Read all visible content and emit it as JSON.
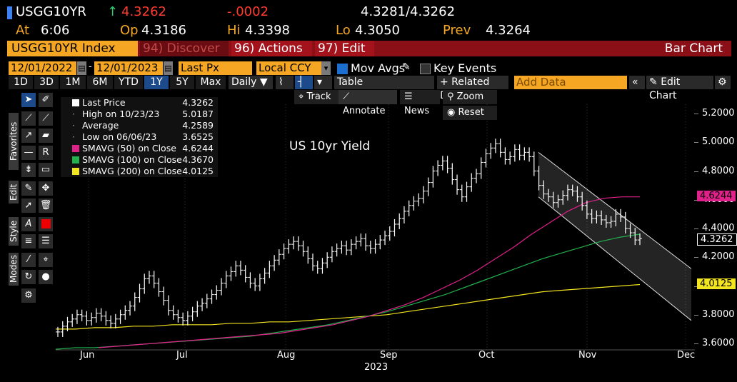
{
  "header": {
    "ticker": "USGG10YR",
    "arrow": "↑",
    "last": "4.3262",
    "change": "-.0002",
    "bid_ask": "4.3281/4.3262",
    "at_label": "At",
    "at_value": "6:06",
    "op_label": "Op",
    "op_value": "4.3186",
    "hi_label": "Hi",
    "hi_value": "4.3398",
    "lo_label": "Lo",
    "lo_value": "4.3050",
    "prev_label": "Prev",
    "prev_value": "4.3264"
  },
  "titlebar": {
    "security": "USGG10YR Index",
    "discover": "94) Discover",
    "actions": "96) Actions",
    "edit": "97) Edit",
    "chart_type": "Bar Chart",
    "dropdown_caret": "▾"
  },
  "controls": {
    "start_date": "12/01/2022",
    "end_date": "12/01/2023",
    "field": "Last Px",
    "currency": "Local CCY",
    "mov_avgs": "Mov Avgs",
    "key_events": "Key Events",
    "periods": [
      "1D",
      "3D",
      "1M",
      "6M",
      "YTD",
      "1Y",
      "5Y",
      "Max"
    ],
    "active_period": "1Y",
    "frequency": "Daily",
    "table": "Table",
    "related_data": "+ Related Dat",
    "add_data_placeholder": "Add Data",
    "edit_chart": "Edit Chart",
    "track": "Track",
    "annotate": "Annotate",
    "news": "News",
    "zoom": "Zoom",
    "reset": "Reset"
  },
  "side_labels": {
    "favorites": "Favorites",
    "edit": "Edit",
    "style": "Style",
    "modes": "Modes"
  },
  "legend": [
    {
      "label": "Last Price",
      "value": "4.3262",
      "color": "#ffffff"
    },
    {
      "label": "High on 10/23/23",
      "value": "5.0187",
      "color": ""
    },
    {
      "label": "Average",
      "value": "4.2589",
      "color": ""
    },
    {
      "label": "Low on 06/06/23",
      "value": "3.6525",
      "color": ""
    },
    {
      "label": "SMAVG (50)  on Close",
      "value": "4.6244",
      "color": "#e0218a"
    },
    {
      "label": "SMAVG (100)  on Close",
      "value": "4.3670",
      "color": "#22b14c"
    },
    {
      "label": "SMAVG (200)  on Close",
      "value": "4.0125",
      "color": "#f2e41f"
    }
  ],
  "chart_data": {
    "type": "bar",
    "title": "US 10yr Yield",
    "y_ticks": [
      "5.2000",
      "5.0000",
      "4.8000",
      "4.6000",
      "4.4000",
      "4.2000",
      "4.0000",
      "3.8000",
      "3.6000"
    ],
    "ylim": [
      3.6,
      5.2
    ],
    "x_ticks": [
      "Jun",
      "Jul",
      "Aug",
      "Sep",
      "Oct",
      "Nov",
      "Dec"
    ],
    "x_year": "2023",
    "right_tags": [
      {
        "value": "4.6244",
        "color": "#e0218a"
      },
      {
        "value": "4.3262",
        "color": "#ffffff"
      },
      {
        "value": "4.0125",
        "color": "#f2e41f"
      }
    ],
    "close": [
      3.68,
      3.72,
      3.75,
      3.77,
      3.8,
      3.79,
      3.76,
      3.78,
      3.81,
      3.79,
      3.76,
      3.74,
      3.77,
      3.8,
      3.83,
      3.86,
      3.92,
      3.98,
      4.05,
      4.07,
      4.02,
      3.96,
      3.9,
      3.83,
      3.8,
      3.78,
      3.76,
      3.79,
      3.82,
      3.86,
      3.88,
      3.91,
      3.94,
      3.97,
      4.02,
      4.07,
      4.1,
      4.14,
      4.11,
      4.06,
      4.02,
      4.0,
      4.05,
      4.09,
      4.14,
      4.18,
      4.22,
      4.26,
      4.29,
      4.31,
      4.28,
      4.24,
      4.19,
      4.14,
      4.12,
      4.16,
      4.2,
      4.24,
      4.26,
      4.28,
      4.25,
      4.29,
      4.31,
      4.33,
      4.28,
      4.26,
      4.29,
      4.32,
      4.35,
      4.38,
      4.43,
      4.47,
      4.52,
      4.56,
      4.59,
      4.61,
      4.66,
      4.72,
      4.8,
      4.84,
      4.87,
      4.82,
      4.74,
      4.67,
      4.62,
      4.69,
      4.75,
      4.78,
      4.86,
      4.92,
      4.96,
      4.99,
      4.93,
      4.88,
      4.9,
      4.95,
      4.91,
      4.93,
      4.9,
      4.8,
      4.7,
      4.64,
      4.62,
      4.58,
      4.6,
      4.63,
      4.67,
      4.66,
      4.62,
      4.56,
      4.5,
      4.47,
      4.49,
      4.46,
      4.44,
      4.45,
      4.5,
      4.48,
      4.4,
      4.37,
      4.32,
      4.33
    ],
    "sma50": [
      3.57,
      3.58,
      3.59,
      3.6,
      3.61,
      3.62,
      3.63,
      3.64,
      3.65,
      3.66,
      3.67,
      3.69,
      3.71,
      3.73,
      3.76,
      3.79,
      3.83,
      3.87,
      3.92,
      3.98,
      4.04,
      4.11,
      4.19,
      4.27,
      4.36,
      4.44,
      4.52,
      4.58,
      4.61,
      4.62,
      4.62
    ],
    "sma100": [
      3.56,
      3.57,
      3.57,
      3.58,
      3.59,
      3.6,
      3.61,
      3.62,
      3.63,
      3.64,
      3.65,
      3.67,
      3.69,
      3.71,
      3.73,
      3.76,
      3.79,
      3.82,
      3.86,
      3.9,
      3.94,
      3.99,
      4.04,
      4.09,
      4.14,
      4.19,
      4.23,
      4.27,
      4.31,
      4.34,
      4.36
    ],
    "sma200": [
      3.7,
      3.7,
      3.71,
      3.71,
      3.72,
      3.72,
      3.73,
      3.73,
      3.73,
      3.74,
      3.74,
      3.75,
      3.75,
      3.76,
      3.77,
      3.78,
      3.79,
      3.8,
      3.82,
      3.84,
      3.86,
      3.88,
      3.9,
      3.92,
      3.94,
      3.96,
      3.97,
      3.98,
      3.99,
      4.0,
      4.01
    ],
    "channel": {
      "upper_start": 4.93,
      "upper_end": 4.12,
      "lower_start": 4.62,
      "lower_end": 3.76
    }
  }
}
